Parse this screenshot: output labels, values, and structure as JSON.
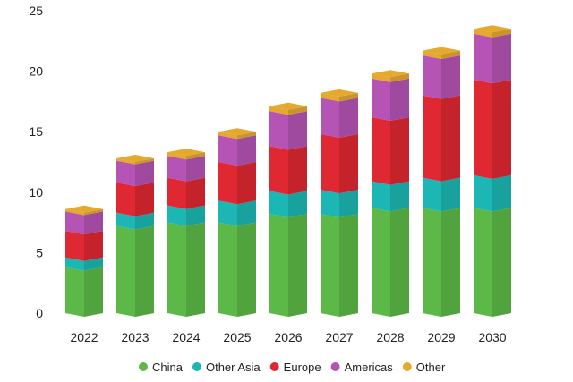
{
  "chart_data": {
    "type": "bar",
    "stacked": true,
    "title": "",
    "xlabel": "",
    "ylabel": "",
    "ylim": [
      0,
      25
    ],
    "yticks": [
      0,
      5,
      10,
      15,
      20,
      25
    ],
    "grid": false,
    "legend_position": "bottom",
    "categories": [
      "2022",
      "2023",
      "2024",
      "2025",
      "2026",
      "2027",
      "2028",
      "2029",
      "2030"
    ],
    "series": [
      {
        "name": "China",
        "color": "#5cb947",
        "values": [
          3.8,
          7.2,
          7.5,
          7.5,
          8.2,
          8.2,
          8.7,
          8.7,
          8.7
        ]
      },
      {
        "name": "Other Asia",
        "color": "#1cb7b4",
        "values": [
          0.8,
          1.1,
          1.4,
          1.8,
          1.9,
          2.0,
          2.2,
          2.5,
          2.7
        ]
      },
      {
        "name": "Europe",
        "color": "#e02832",
        "values": [
          2.2,
          2.5,
          2.3,
          3.2,
          3.7,
          4.6,
          5.3,
          6.8,
          7.9
        ]
      },
      {
        "name": "Americas",
        "color": "#b554b4",
        "values": [
          1.6,
          1.8,
          1.8,
          2.2,
          2.9,
          3.0,
          3.2,
          3.3,
          3.8
        ]
      },
      {
        "name": "Other",
        "color": "#e4a92d",
        "values": [
          0.2,
          0.2,
          0.3,
          0.3,
          0.4,
          0.4,
          0.4,
          0.4,
          0.4
        ]
      }
    ]
  }
}
